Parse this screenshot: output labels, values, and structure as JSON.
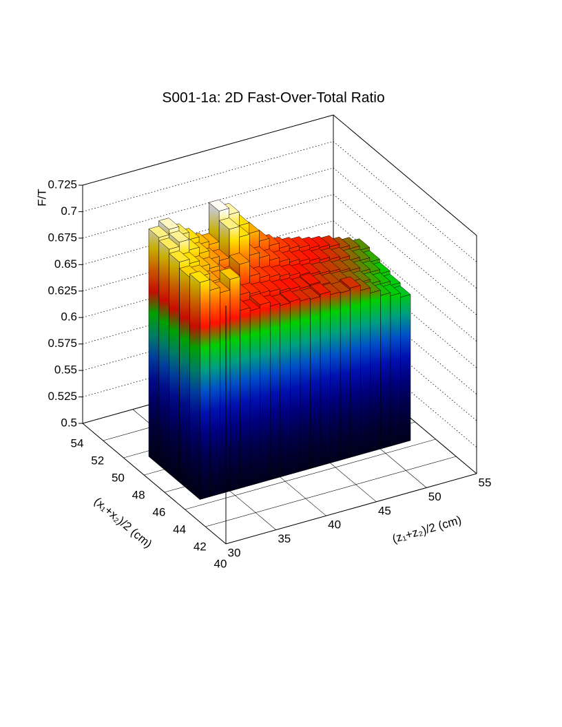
{
  "chart_data": {
    "type": "lego",
    "title": "S001-1a: 2D Fast-Over-Total Ratio",
    "x_label": "(z₁+z₂)/2 (cm)",
    "y_label": "(x₁+x₂)/2 (cm)",
    "z_label": "F/T",
    "xlim": [
      30,
      55
    ],
    "xticks": [
      30,
      35,
      40,
      45,
      50,
      55
    ],
    "ylim": [
      40,
      54
    ],
    "yticks": [
      40,
      42,
      44,
      46,
      48,
      50,
      52,
      54
    ],
    "zlim": [
      0.5,
      0.725
    ],
    "zticks": [
      0.5,
      0.525,
      0.55,
      0.575,
      0.6,
      0.625,
      0.65,
      0.675,
      0.7,
      0.725
    ],
    "x_bins": [
      32,
      33,
      34,
      35,
      36,
      37,
      38,
      39,
      40,
      41,
      42,
      43,
      44,
      45,
      46,
      47,
      48,
      49,
      50,
      51,
      52,
      53
    ],
    "y_bins": [
      44.5,
      45.5,
      46.5,
      47.5,
      48.5,
      49.5
    ],
    "values": [
      [
        0.705,
        0.695,
        0.69,
        0.7,
        0.668,
        0.665,
        0.668,
        0.664,
        0.662,
        0.663,
        0.661,
        0.66,
        0.662,
        0.659,
        0.658,
        0.66,
        0.655,
        0.65,
        0.645,
        0.642,
        0.638
      ],
      [
        0.702,
        0.7,
        0.692,
        0.69,
        0.675,
        0.672,
        0.67,
        0.668,
        0.667,
        0.665,
        0.664,
        0.662,
        0.663,
        0.66,
        0.658,
        0.657,
        0.655,
        0.652,
        0.648,
        0.645,
        0.641
      ],
      [
        0.708,
        0.704,
        0.698,
        0.694,
        0.685,
        0.68,
        0.69,
        0.676,
        0.672,
        0.67,
        0.668,
        0.666,
        0.664,
        0.662,
        0.66,
        0.659,
        0.657,
        0.655,
        0.651,
        0.648,
        0.644
      ],
      [
        0.712,
        0.716,
        0.706,
        0.7,
        0.692,
        0.688,
        0.715,
        0.705,
        0.685,
        0.68,
        0.675,
        0.671,
        0.668,
        0.666,
        0.664,
        0.662,
        0.66,
        0.658,
        0.654,
        0.651,
        0.647
      ],
      [
        0.715,
        0.72,
        0.712,
        0.705,
        0.698,
        0.695,
        0.724,
        0.718,
        0.705,
        0.695,
        0.685,
        0.678,
        0.673,
        0.67,
        0.668,
        0.665,
        0.663,
        0.661,
        0.657,
        0.654,
        0.65
      ]
    ],
    "palette": [
      "#000018",
      "#000030",
      "#000050",
      "#000080",
      "#0010b0",
      "#0050c8",
      "#00a080",
      "#00d000",
      "#ff1000",
      "#ff7000",
      "#ffe000",
      "#ffffff"
    ],
    "grid": true
  }
}
